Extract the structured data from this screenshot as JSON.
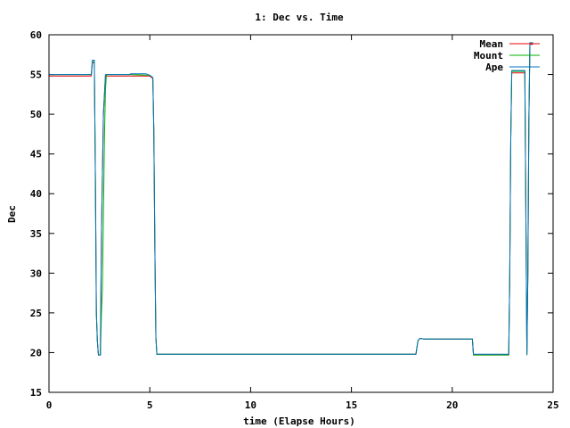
{
  "chart_data": {
    "type": "line",
    "title": "1: Dec vs. Time",
    "xlabel": "time (Elapse Hours)",
    "ylabel": "Dec",
    "xlim": [
      0,
      25
    ],
    "ylim": [
      15,
      60
    ],
    "xticks": [
      0,
      5,
      10,
      15,
      20,
      25
    ],
    "yticks": [
      15,
      20,
      25,
      30,
      35,
      40,
      45,
      50,
      55,
      60
    ],
    "grid": false,
    "legend_position": "top-right",
    "series": [
      {
        "name": "Mean",
        "color": "#e8000b",
        "points": [
          [
            0,
            54.8
          ],
          [
            2.1,
            54.8
          ],
          [
            2.15,
            56.5
          ],
          [
            2.25,
            56.5
          ],
          [
            2.3,
            42
          ],
          [
            2.35,
            25
          ],
          [
            2.4,
            21.5
          ],
          [
            2.45,
            19.7
          ],
          [
            2.55,
            19.7
          ],
          [
            2.6,
            35
          ],
          [
            2.7,
            50
          ],
          [
            2.8,
            54.8
          ],
          [
            3.0,
            54.8
          ],
          [
            5.0,
            54.8
          ],
          [
            5.15,
            54.5
          ],
          [
            5.2,
            48
          ],
          [
            5.25,
            33
          ],
          [
            5.3,
            22
          ],
          [
            5.35,
            19.8
          ],
          [
            18.2,
            19.8
          ],
          [
            18.3,
            21.5
          ],
          [
            18.4,
            21.8
          ],
          [
            18.6,
            21.7
          ],
          [
            21.0,
            21.7
          ],
          [
            21.05,
            19.7
          ],
          [
            22.8,
            19.7
          ],
          [
            22.85,
            29
          ],
          [
            22.9,
            47
          ],
          [
            22.95,
            55.2
          ],
          [
            23.6,
            55.2
          ],
          [
            23.7,
            19.7
          ],
          [
            23.75,
            30
          ],
          [
            23.8,
            49
          ],
          [
            23.85,
            58.8
          ],
          [
            24.0,
            58.8
          ]
        ]
      },
      {
        "name": "Mount",
        "color": "#00b300",
        "points": [
          [
            0,
            55.0
          ],
          [
            2.1,
            55.0
          ],
          [
            2.15,
            56.6
          ],
          [
            2.25,
            56.6
          ],
          [
            2.3,
            42
          ],
          [
            2.35,
            25
          ],
          [
            2.4,
            21.5
          ],
          [
            2.45,
            19.7
          ],
          [
            2.55,
            19.7
          ],
          [
            2.6,
            25
          ],
          [
            2.65,
            28
          ],
          [
            2.7,
            37
          ],
          [
            2.75,
            47
          ],
          [
            2.8,
            53
          ],
          [
            2.85,
            55.0
          ],
          [
            3.0,
            55.0
          ],
          [
            4.0,
            55.0
          ],
          [
            5.0,
            54.9
          ],
          [
            5.15,
            54.6
          ],
          [
            5.2,
            48
          ],
          [
            5.25,
            33
          ],
          [
            5.3,
            22
          ],
          [
            5.35,
            19.8
          ],
          [
            18.2,
            19.8
          ],
          [
            18.3,
            21.5
          ],
          [
            18.4,
            21.8
          ],
          [
            18.6,
            21.7
          ],
          [
            21.0,
            21.7
          ],
          [
            21.05,
            19.7
          ],
          [
            22.8,
            19.7
          ],
          [
            22.85,
            29
          ],
          [
            22.9,
            47
          ],
          [
            22.95,
            55.4
          ],
          [
            23.6,
            55.4
          ],
          [
            23.7,
            19.7
          ],
          [
            23.75,
            30
          ],
          [
            23.8,
            49
          ],
          [
            23.85,
            58.9
          ],
          [
            24.0,
            58.9
          ]
        ]
      },
      {
        "name": "Ape",
        "color": "#0072bd",
        "points": [
          [
            0,
            55.0
          ],
          [
            2.1,
            55.0
          ],
          [
            2.15,
            56.8
          ],
          [
            2.25,
            56.8
          ],
          [
            2.3,
            42
          ],
          [
            2.35,
            25
          ],
          [
            2.4,
            21.5
          ],
          [
            2.45,
            19.7
          ],
          [
            2.55,
            19.7
          ],
          [
            2.6,
            35
          ],
          [
            2.7,
            50
          ],
          [
            2.8,
            55.0
          ],
          [
            3.0,
            55.0
          ],
          [
            4.0,
            55.0
          ],
          [
            4.05,
            55.1
          ],
          [
            4.8,
            55.1
          ],
          [
            5.0,
            54.9
          ],
          [
            5.15,
            54.6
          ],
          [
            5.2,
            48
          ],
          [
            5.25,
            33
          ],
          [
            5.3,
            22
          ],
          [
            5.35,
            19.8
          ],
          [
            18.2,
            19.8
          ],
          [
            18.3,
            21.5
          ],
          [
            18.4,
            21.8
          ],
          [
            18.6,
            21.7
          ],
          [
            21.0,
            21.7
          ],
          [
            21.05,
            19.8
          ],
          [
            22.8,
            19.8
          ],
          [
            22.85,
            29
          ],
          [
            22.9,
            47
          ],
          [
            22.95,
            55.5
          ],
          [
            23.6,
            55.5
          ],
          [
            23.7,
            19.7
          ],
          [
            23.75,
            30
          ],
          [
            23.8,
            49
          ],
          [
            23.85,
            59.0
          ],
          [
            24.0,
            59.0
          ]
        ]
      }
    ]
  }
}
